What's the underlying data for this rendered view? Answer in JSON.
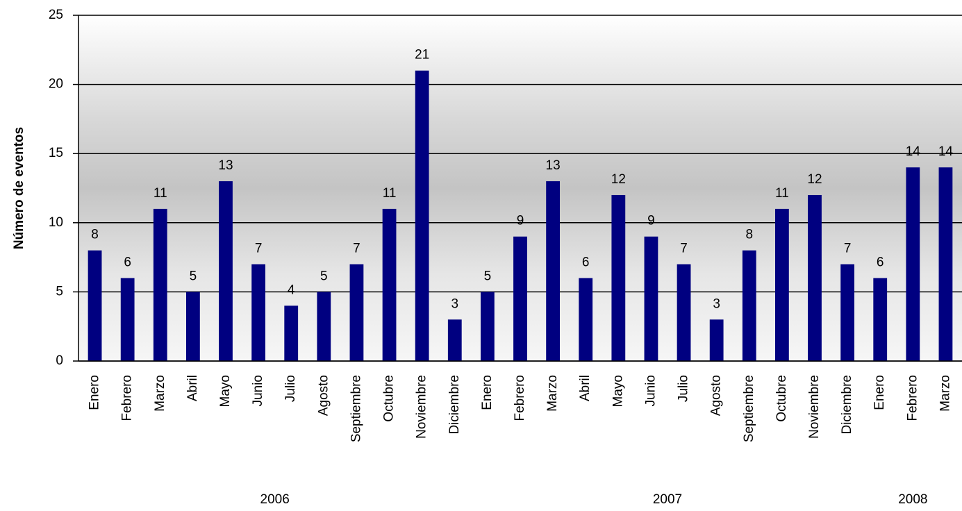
{
  "chart_data": {
    "type": "bar",
    "y_label": "Número de eventos",
    "categories": [
      "Enero",
      "Febrero",
      "Marzo",
      "Abril",
      "Mayo",
      "Junio",
      "Julio",
      "Agosto",
      "Septiembre",
      "Octubre",
      "Noviembre",
      "Diciembre",
      "Enero",
      "Febrero",
      "Marzo",
      "Abril",
      "Mayo",
      "Junio",
      "Julio",
      "Agosto",
      "Septiembre",
      "Octubre",
      "Noviembre",
      "Diciembre",
      "Enero",
      "Febrero",
      "Marzo"
    ],
    "values": [
      8,
      6,
      11,
      5,
      13,
      7,
      4,
      5,
      7,
      11,
      21,
      3,
      5,
      9,
      13,
      6,
      12,
      9,
      7,
      3,
      8,
      11,
      12,
      7,
      6,
      14,
      14
    ],
    "years": [
      "2006",
      "2007",
      "2008"
    ],
    "color": "#000080",
    "ylim": [
      0,
      25
    ],
    "yticks": [
      0,
      5,
      10,
      15,
      20,
      25
    ],
    "grid": true
  }
}
